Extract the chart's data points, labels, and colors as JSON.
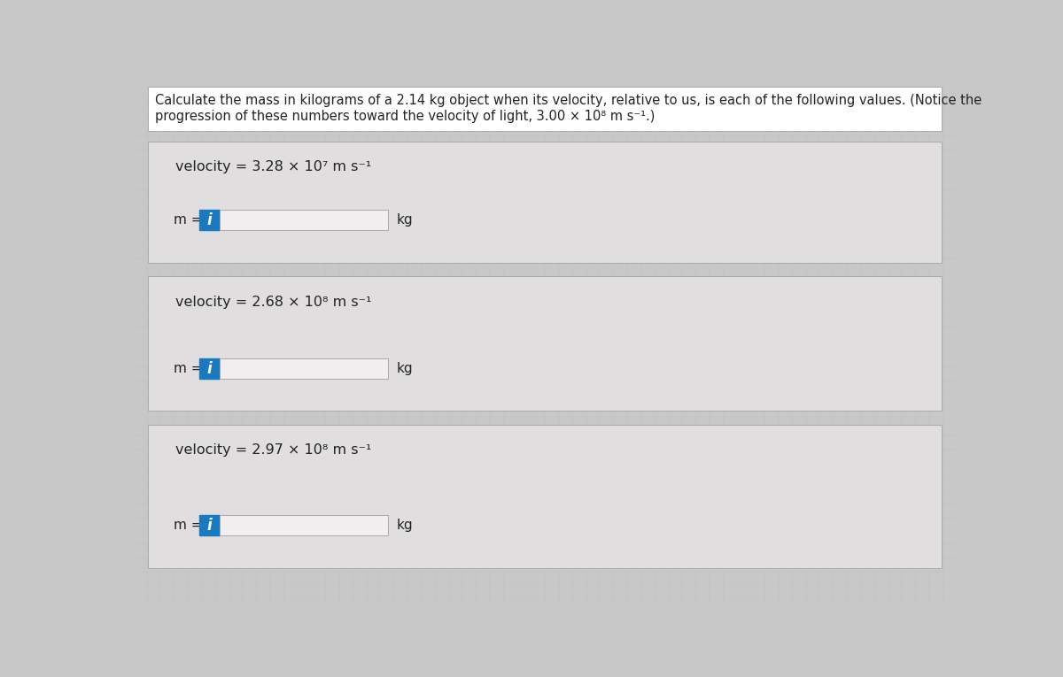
{
  "bg_color": "#c8c8c8",
  "panel_color": "#e0dede",
  "white_color": "#ffffff",
  "border_color": "#aaaaaa",
  "text_color": "#222222",
  "blue_btn_color": "#1a7abf",
  "input_bg": "#f0eeee",
  "header_bg": "#ffffff",
  "header_text_line1": "Calculate the mass in kilograms of a 2.14 kg object when its velocity, relative to us, is each of the following values. (Notice the",
  "header_text_line2": "progression of these numbers toward the velocity of light, 3.00 × 10⁸ m s⁻¹.)",
  "sections": [
    {
      "velocity_label": "velocity = 3.28 × 10⁷ m s⁻¹",
      "unit": "kg"
    },
    {
      "velocity_label": "velocity = 2.68 × 10⁸ m s⁻¹",
      "unit": "kg"
    },
    {
      "velocity_label": "velocity = 2.97 × 10⁸ m s⁻¹",
      "unit": "kg"
    }
  ],
  "fig_width": 12.0,
  "fig_height": 7.65,
  "dpi": 100
}
